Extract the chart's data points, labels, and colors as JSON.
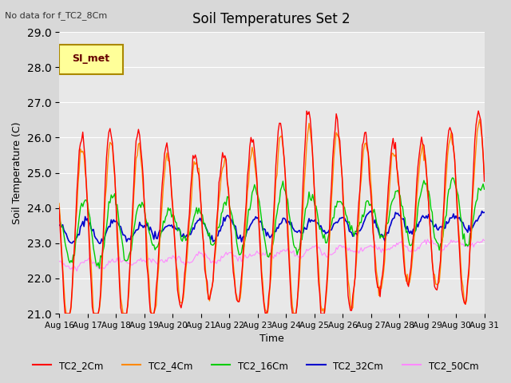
{
  "title": "Soil Temperatures Set 2",
  "subtitle": "No data for f_TC2_8Cm",
  "xlabel": "Time",
  "ylabel": "Soil Temperature (C)",
  "ylim": [
    21.0,
    29.0
  ],
  "yticks": [
    21.0,
    22.0,
    23.0,
    24.0,
    25.0,
    26.0,
    27.0,
    28.0,
    29.0
  ],
  "xlim_start": 16,
  "xlim_end": 31,
  "xtick_labels": [
    "Aug 16",
    "Aug 17",
    "Aug 18",
    "Aug 19",
    "Aug 20",
    "Aug 21",
    "Aug 22",
    "Aug 23",
    "Aug 24",
    "Aug 25",
    "Aug 26",
    "Aug 27",
    "Aug 28",
    "Aug 29",
    "Aug 30",
    "Aug 31"
  ],
  "series_colors": {
    "TC2_2Cm": "#ff0000",
    "TC2_4Cm": "#ff8800",
    "TC2_16Cm": "#00cc00",
    "TC2_32Cm": "#0000cc",
    "TC2_50Cm": "#ff88ff"
  },
  "legend_label": "SI_met",
  "background_color": "#e8e8e8",
  "plot_bg_color": "#f0f0f0"
}
